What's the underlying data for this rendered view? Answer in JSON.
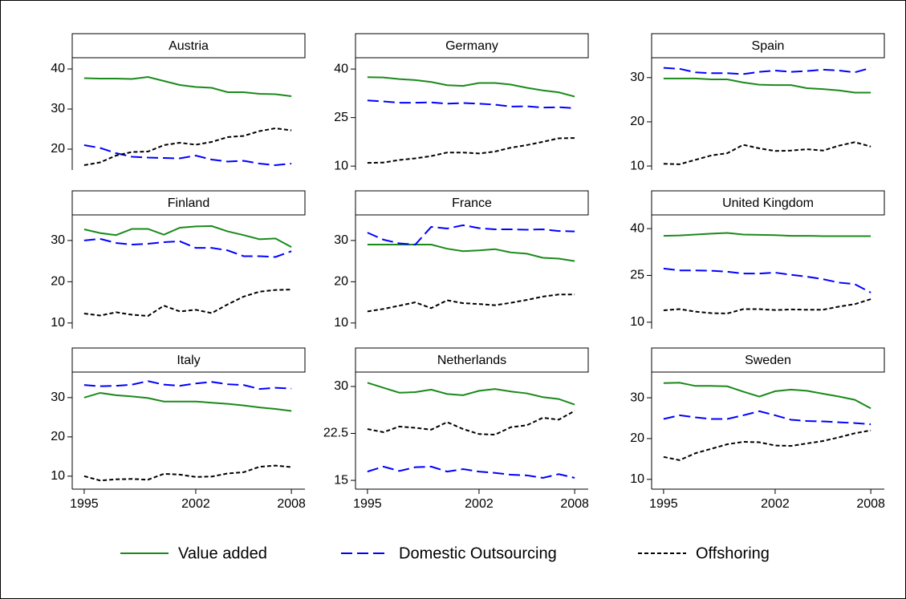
{
  "chart_data": [
    {
      "type": "line",
      "title": "Austria",
      "x": [
        1995,
        1996,
        1997,
        1998,
        1999,
        2000,
        2001,
        2002,
        2003,
        2004,
        2005,
        2006,
        2007,
        2008
      ],
      "xlim": [
        1994.25,
        2008.85
      ],
      "ylim": [
        14.8,
        42.8
      ],
      "yticks": [
        20,
        30,
        40
      ],
      "series": [
        {
          "name": "Value added",
          "color": "#1a8a1a",
          "values": [
            37.7,
            37.6,
            37.6,
            37.5,
            38.0,
            37.0,
            36.0,
            35.5,
            35.3,
            34.2,
            34.2,
            33.8,
            33.7,
            33.2
          ]
        },
        {
          "name": "Domestic Outsourcing",
          "color": "#0000ff",
          "values": [
            21.0,
            20.3,
            19.0,
            18.1,
            17.9,
            17.8,
            17.7,
            18.4,
            17.4,
            16.9,
            17.1,
            16.4,
            16.0,
            16.4
          ]
        },
        {
          "name": "Offshoring",
          "color": "#000000",
          "values": [
            16.0,
            16.7,
            18.4,
            19.3,
            19.4,
            21.0,
            21.6,
            21.1,
            21.8,
            23.0,
            23.3,
            24.5,
            25.2,
            24.7
          ]
        }
      ]
    },
    {
      "type": "line",
      "title": "Germany",
      "x": [
        1995,
        1996,
        1997,
        1998,
        1999,
        2000,
        2001,
        2002,
        2003,
        2004,
        2005,
        2006,
        2007,
        2008
      ],
      "xlim": [
        1994.25,
        2008.85
      ],
      "ylim": [
        8.8,
        43.5
      ],
      "yticks": [
        10,
        25,
        40
      ],
      "series": [
        {
          "name": "Value added",
          "color": "#1a8a1a",
          "values": [
            37.5,
            37.4,
            36.9,
            36.6,
            36.0,
            35.0,
            34.8,
            35.7,
            35.7,
            35.2,
            34.2,
            33.4,
            32.8,
            31.5
          ]
        },
        {
          "name": "Domestic Outsourcing",
          "color": "#0000ff",
          "values": [
            30.3,
            30.0,
            29.6,
            29.6,
            29.7,
            29.3,
            29.5,
            29.3,
            29.0,
            28.4,
            28.5,
            28.1,
            28.2,
            27.9
          ]
        },
        {
          "name": "Offshoring",
          "color": "#000000",
          "values": [
            11.0,
            11.1,
            11.9,
            12.4,
            13.1,
            14.2,
            14.2,
            13.9,
            14.5,
            15.7,
            16.5,
            17.5,
            18.6,
            18.7
          ]
        }
      ]
    },
    {
      "type": "line",
      "title": "Spain",
      "x": [
        1995,
        1996,
        1997,
        1998,
        1999,
        2000,
        2001,
        2002,
        2003,
        2004,
        2005,
        2006,
        2007,
        2008
      ],
      "xlim": [
        1994.25,
        2008.85
      ],
      "ylim": [
        9.1,
        34.5
      ],
      "yticks": [
        10,
        20,
        30
      ],
      "series": [
        {
          "name": "Value added",
          "color": "#1a8a1a",
          "values": [
            29.8,
            29.8,
            29.8,
            29.6,
            29.6,
            28.9,
            28.4,
            28.3,
            28.3,
            27.6,
            27.4,
            27.1,
            26.6,
            26.6
          ]
        },
        {
          "name": "Domestic Outsourcing",
          "color": "#0000ff",
          "values": [
            32.2,
            32.0,
            31.2,
            31.0,
            31.0,
            30.8,
            31.3,
            31.6,
            31.3,
            31.5,
            31.8,
            31.6,
            31.2,
            32.2
          ]
        },
        {
          "name": "Offshoring",
          "color": "#000000",
          "values": [
            10.5,
            10.4,
            11.4,
            12.4,
            12.9,
            14.8,
            14.0,
            13.4,
            13.5,
            13.8,
            13.5,
            14.6,
            15.4,
            14.4
          ]
        }
      ]
    },
    {
      "type": "line",
      "title": "Finland",
      "x": [
        1995,
        1996,
        1997,
        1998,
        1999,
        2000,
        2001,
        2002,
        2003,
        2004,
        2005,
        2006,
        2007,
        2008
      ],
      "xlim": [
        1994.25,
        2008.85
      ],
      "ylim": [
        8.6,
        36.2
      ],
      "yticks": [
        10,
        20,
        30
      ],
      "series": [
        {
          "name": "Value added",
          "color": "#1a8a1a",
          "values": [
            32.7,
            31.8,
            31.3,
            32.8,
            32.8,
            31.4,
            33.1,
            33.4,
            33.5,
            32.2,
            31.3,
            30.3,
            30.5,
            28.4
          ]
        },
        {
          "name": "Domestic Outsourcing",
          "color": "#0000ff",
          "values": [
            30.0,
            30.4,
            29.4,
            29.0,
            29.2,
            29.6,
            29.8,
            28.2,
            28.2,
            27.6,
            26.2,
            26.2,
            26.0,
            27.4
          ]
        },
        {
          "name": "Offshoring",
          "color": "#000000",
          "values": [
            12.3,
            11.8,
            12.6,
            12.0,
            11.7,
            14.2,
            12.8,
            13.2,
            12.4,
            14.5,
            16.4,
            17.6,
            18.0,
            18.1
          ]
        }
      ]
    },
    {
      "type": "line",
      "title": "France",
      "x": [
        1995,
        1996,
        1997,
        1998,
        1999,
        2000,
        2001,
        2002,
        2003,
        2004,
        2005,
        2006,
        2007,
        2008
      ],
      "xlim": [
        1994.25,
        2008.85
      ],
      "ylim": [
        8.6,
        36.2
      ],
      "yticks": [
        10,
        20,
        30
      ],
      "series": [
        {
          "name": "Value added",
          "color": "#1a8a1a",
          "values": [
            29.0,
            29.0,
            29.0,
            29.0,
            29.0,
            28.0,
            27.4,
            27.6,
            27.9,
            27.1,
            26.8,
            25.8,
            25.6,
            25.0
          ]
        },
        {
          "name": "Domestic Outsourcing",
          "color": "#0000ff",
          "values": [
            31.9,
            30.2,
            29.3,
            29.0,
            33.3,
            32.9,
            33.7,
            33.0,
            32.7,
            32.7,
            32.6,
            32.7,
            32.3,
            32.2
          ]
        },
        {
          "name": "Offshoring",
          "color": "#000000",
          "values": [
            12.8,
            13.4,
            14.2,
            15.0,
            13.6,
            15.5,
            14.8,
            14.6,
            14.3,
            14.9,
            15.6,
            16.4,
            16.9,
            16.9
          ]
        }
      ]
    },
    {
      "type": "line",
      "title": "United Kingdom",
      "x": [
        1995,
        1996,
        1997,
        1998,
        1999,
        2000,
        2001,
        2002,
        2003,
        2004,
        2005,
        2006,
        2007,
        2008
      ],
      "xlim": [
        1994.25,
        2008.85
      ],
      "ylim": [
        7.9,
        44.4
      ],
      "yticks": [
        10,
        25,
        40
      ],
      "series": [
        {
          "name": "Value added",
          "color": "#1a8a1a",
          "values": [
            37.7,
            37.8,
            38.1,
            38.4,
            38.6,
            38.1,
            38.0,
            37.9,
            37.7,
            37.7,
            37.6,
            37.6,
            37.6,
            37.6
          ]
        },
        {
          "name": "Domestic Outsourcing",
          "color": "#0000ff",
          "values": [
            27.2,
            26.6,
            26.6,
            26.5,
            26.2,
            25.6,
            25.6,
            25.9,
            25.2,
            24.6,
            23.8,
            22.7,
            22.2,
            19.5
          ]
        },
        {
          "name": "Offshoring",
          "color": "#000000",
          "values": [
            13.8,
            14.2,
            13.4,
            12.9,
            12.8,
            14.2,
            14.2,
            13.9,
            14.1,
            14.0,
            14.0,
            15.0,
            15.8,
            17.4
          ]
        }
      ]
    },
    {
      "type": "line",
      "title": "Italy",
      "x": [
        1995,
        1996,
        1997,
        1998,
        1999,
        2000,
        2001,
        2002,
        2003,
        2004,
        2005,
        2006,
        2007,
        2008
      ],
      "xlim": [
        1994.25,
        2008.85
      ],
      "ylim": [
        6.7,
        36.5
      ],
      "yticks": [
        10,
        20,
        30
      ],
      "xticks": [
        1995,
        2002,
        2008
      ],
      "series": [
        {
          "name": "Value added",
          "color": "#1a8a1a",
          "values": [
            30.0,
            31.2,
            30.6,
            30.3,
            29.9,
            29.0,
            29.0,
            29.0,
            28.7,
            28.4,
            28.0,
            27.5,
            27.1,
            26.6
          ]
        },
        {
          "name": "Domestic Outsourcing",
          "color": "#0000ff",
          "values": [
            33.2,
            32.9,
            33.0,
            33.3,
            34.2,
            33.3,
            33.0,
            33.6,
            34.0,
            33.4,
            33.2,
            32.2,
            32.5,
            32.3
          ]
        },
        {
          "name": "Offshoring",
          "color": "#000000",
          "values": [
            10.0,
            8.9,
            9.2,
            9.3,
            9.1,
            10.6,
            10.4,
            9.8,
            9.9,
            10.7,
            11.0,
            12.4,
            12.7,
            12.3
          ]
        }
      ]
    },
    {
      "type": "line",
      "title": "Netherlands",
      "x": [
        1995,
        1996,
        1997,
        1998,
        1999,
        2000,
        2001,
        2002,
        2003,
        2004,
        2005,
        2006,
        2007,
        2008
      ],
      "xlim": [
        1994.25,
        2008.85
      ],
      "ylim": [
        13.6,
        32.3
      ],
      "yticks": [
        15,
        22.5,
        30
      ],
      "xticks": [
        1995,
        2002,
        2008
      ],
      "series": [
        {
          "name": "Value added",
          "color": "#1a8a1a",
          "values": [
            30.6,
            29.8,
            29.0,
            29.1,
            29.5,
            28.8,
            28.6,
            29.3,
            29.6,
            29.2,
            28.9,
            28.3,
            28.0,
            27.1
          ]
        },
        {
          "name": "Domestic Outsourcing",
          "color": "#0000ff",
          "values": [
            16.4,
            17.2,
            16.5,
            17.1,
            17.2,
            16.4,
            16.8,
            16.4,
            16.2,
            15.9,
            15.8,
            15.4,
            16.0,
            15.4
          ]
        },
        {
          "name": "Offshoring",
          "color": "#000000",
          "values": [
            23.2,
            22.7,
            23.6,
            23.4,
            23.1,
            24.3,
            23.2,
            22.4,
            22.3,
            23.5,
            23.8,
            25.0,
            24.7,
            26.1
          ]
        }
      ]
    },
    {
      "type": "line",
      "title": "Sweden",
      "x": [
        1995,
        1996,
        1997,
        1998,
        1999,
        2000,
        2001,
        2002,
        2003,
        2004,
        2005,
        2006,
        2007,
        2008
      ],
      "xlim": [
        1994.25,
        2008.85
      ],
      "ylim": [
        7.6,
        36.3
      ],
      "yticks": [
        10,
        20,
        30
      ],
      "xticks": [
        1995,
        2002,
        2008
      ],
      "series": [
        {
          "name": "Value added",
          "color": "#1a8a1a",
          "values": [
            33.6,
            33.7,
            32.9,
            32.9,
            32.8,
            31.5,
            30.3,
            31.6,
            32.0,
            31.7,
            31.0,
            30.3,
            29.5,
            27.4
          ]
        },
        {
          "name": "Domestic Outsourcing",
          "color": "#0000ff",
          "values": [
            24.8,
            25.7,
            25.2,
            24.8,
            24.8,
            25.7,
            26.7,
            25.7,
            24.6,
            24.3,
            24.2,
            24.0,
            23.8,
            23.5
          ]
        },
        {
          "name": "Offshoring",
          "color": "#000000",
          "values": [
            15.5,
            14.7,
            16.4,
            17.5,
            18.6,
            19.2,
            19.1,
            18.3,
            18.2,
            18.8,
            19.4,
            20.3,
            21.3,
            22.0
          ]
        }
      ]
    }
  ]
}
